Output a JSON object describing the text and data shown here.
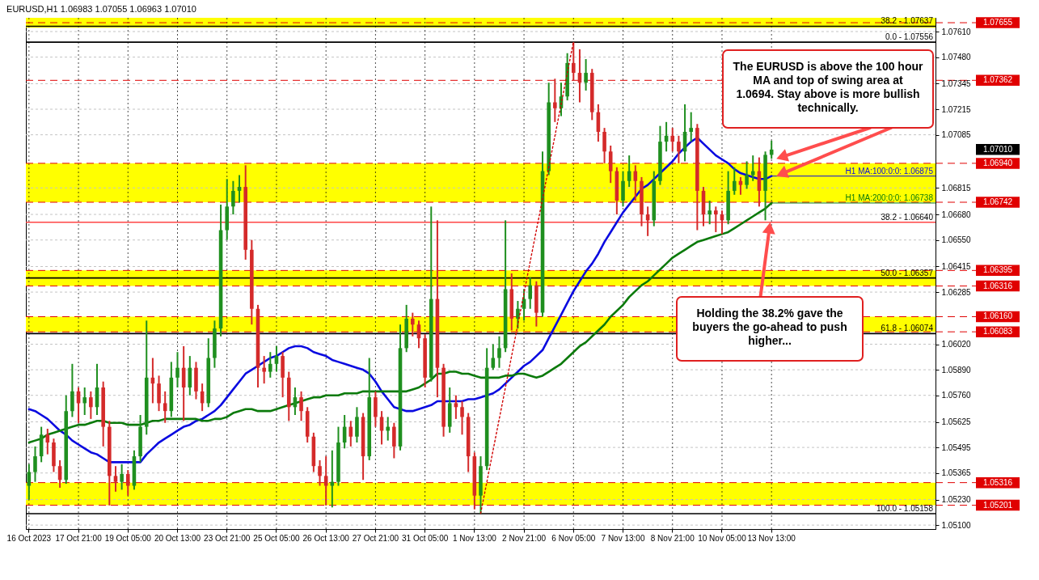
{
  "chart_data": {
    "type": "candlestick",
    "title": "EURUSD,H1  1.06983 1.07055 1.06963 1.07010",
    "categories": [
      "16 Oct 2023",
      null,
      null,
      null,
      null,
      null,
      null,
      null,
      "17 Oct 21:00",
      null,
      null,
      null,
      null,
      null,
      null,
      null,
      "19 Oct 05:00",
      null,
      null,
      null,
      null,
      null,
      null,
      null,
      "20 Oct 13:00",
      null,
      null,
      null,
      null,
      null,
      null,
      null,
      "23 Oct 21:00",
      null,
      null,
      null,
      null,
      null,
      null,
      null,
      "25 Oct 05:00",
      null,
      null,
      null,
      null,
      null,
      null,
      null,
      "26 Oct 13:00",
      null,
      null,
      null,
      null,
      null,
      null,
      null,
      "27 Oct 21:00",
      null,
      null,
      null,
      null,
      null,
      null,
      null,
      "31 Oct 05:00",
      null,
      null,
      null,
      null,
      null,
      null,
      null,
      "1 Nov 13:00",
      null,
      null,
      null,
      null,
      null,
      null,
      null,
      "2 Nov 21:00",
      null,
      null,
      null,
      null,
      null,
      null,
      null,
      "6 Nov 05:00",
      null,
      null,
      null,
      null,
      null,
      null,
      null,
      "7 Nov 13:00",
      null,
      null,
      null,
      null,
      null,
      null,
      null,
      "8 Nov 21:00",
      null,
      null,
      null,
      null,
      null,
      null,
      null,
      "10 Nov 05:00",
      null,
      null,
      null,
      null,
      null,
      null,
      null,
      "13 Nov 13:00"
    ],
    "ohlc": [
      [
        1.053,
        1.0541,
        1.0523,
        1.0537
      ],
      [
        1.0537,
        1.055,
        1.0532,
        1.0545
      ],
      [
        1.0545,
        1.056,
        1.0542,
        1.0556
      ],
      [
        1.0556,
        1.0559,
        1.0546,
        1.0552
      ],
      [
        1.0552,
        1.0554,
        1.0537,
        1.054
      ],
      [
        1.054,
        1.0543,
        1.0529,
        1.0533
      ],
      [
        1.0533,
        1.0576,
        1.0531,
        1.0568
      ],
      [
        1.0568,
        1.0592,
        1.0565,
        1.0578
      ],
      [
        1.0578,
        1.058,
        1.0562,
        1.0572
      ],
      [
        1.0572,
        1.058,
        1.0566,
        1.0575
      ],
      [
        1.0575,
        1.0578,
        1.0564,
        1.057
      ],
      [
        1.057,
        1.0592,
        1.0566,
        1.058
      ],
      [
        1.058,
        1.0583,
        1.055,
        1.056
      ],
      [
        1.056,
        1.0563,
        1.052,
        1.0535
      ],
      [
        1.0535,
        1.054,
        1.0527,
        1.0532
      ],
      [
        1.0532,
        1.0541,
        1.0528,
        1.0536
      ],
      [
        1.0536,
        1.0538,
        1.0525,
        1.053
      ],
      [
        1.053,
        1.0548,
        1.0528,
        1.0545
      ],
      [
        1.0545,
        1.0566,
        1.0542,
        1.056
      ],
      [
        1.056,
        1.0614,
        1.0556,
        1.0585
      ],
      [
        1.0585,
        1.0595,
        1.0572,
        1.0582
      ],
      [
        1.0582,
        1.0586,
        1.0568,
        1.0572
      ],
      [
        1.0572,
        1.0578,
        1.0562,
        1.0568
      ],
      [
        1.0568,
        1.0593,
        1.0565,
        1.0585
      ],
      [
        1.0585,
        1.0598,
        1.058,
        1.059
      ],
      [
        1.059,
        1.0601,
        1.0563,
        1.058
      ],
      [
        1.058,
        1.0596,
        1.0576,
        1.059
      ],
      [
        1.059,
        1.0593,
        1.0574,
        1.0578
      ],
      [
        1.0578,
        1.0582,
        1.0568,
        1.0572
      ],
      [
        1.0572,
        1.0605,
        1.057,
        1.0595
      ],
      [
        1.0595,
        1.0614,
        1.059,
        1.061
      ],
      [
        1.061,
        1.0673,
        1.0606,
        1.066
      ],
      [
        1.066,
        1.0686,
        1.0655,
        1.0672
      ],
      [
        1.0672,
        1.0685,
        1.0668,
        1.068
      ],
      [
        1.068,
        1.0688,
        1.0674,
        1.0682
      ],
      [
        1.0682,
        1.0693,
        1.0645,
        1.065
      ],
      [
        1.065,
        1.0655,
        1.0612,
        1.062
      ],
      [
        1.062,
        1.0622,
        1.058,
        1.059
      ],
      [
        1.059,
        1.0596,
        1.0582,
        1.0588
      ],
      [
        1.0588,
        1.0598,
        1.0585,
        1.0592
      ],
      [
        1.0592,
        1.0601,
        1.0588,
        1.0596
      ],
      [
        1.0596,
        1.0598,
        1.0575,
        1.0585
      ],
      [
        1.0585,
        1.0588,
        1.0563,
        1.057
      ],
      [
        1.057,
        1.058,
        1.0566,
        1.0575
      ],
      [
        1.0575,
        1.0578,
        1.0563,
        1.0568
      ],
      [
        1.0568,
        1.057,
        1.0552,
        1.0555
      ],
      [
        1.0555,
        1.0557,
        1.0537,
        1.054
      ],
      [
        1.054,
        1.0543,
        1.053,
        1.0535
      ],
      [
        1.0535,
        1.0545,
        1.052,
        1.053
      ],
      [
        1.053,
        1.0548,
        1.0519,
        1.0532
      ],
      [
        1.0532,
        1.056,
        1.053,
        1.0552
      ],
      [
        1.0552,
        1.0566,
        1.0549,
        1.056
      ],
      [
        1.056,
        1.0563,
        1.055,
        1.0555
      ],
      [
        1.0555,
        1.057,
        1.0552,
        1.0565
      ],
      [
        1.0565,
        1.0567,
        1.0533,
        1.0545
      ],
      [
        1.0545,
        1.0595,
        1.0543,
        1.0575
      ],
      [
        1.0575,
        1.0578,
        1.056,
        1.0565
      ],
      [
        1.0565,
        1.0568,
        1.0551,
        1.0558
      ],
      [
        1.0558,
        1.0565,
        1.0553,
        1.056
      ],
      [
        1.056,
        1.0562,
        1.0544,
        1.055
      ],
      [
        1.055,
        1.0612,
        1.0548,
        1.06
      ],
      [
        1.06,
        1.0622,
        1.0598,
        1.0615
      ],
      [
        1.0615,
        1.0618,
        1.0606,
        1.0612
      ],
      [
        1.0612,
        1.0614,
        1.06,
        1.0605
      ],
      [
        1.0605,
        1.0607,
        1.058,
        1.0585
      ],
      [
        1.0585,
        1.0672,
        1.0583,
        1.0625
      ],
      [
        1.0625,
        1.0665,
        1.0575,
        1.059
      ],
      [
        1.059,
        1.0592,
        1.0555,
        1.056
      ],
      [
        1.056,
        1.058,
        1.0557,
        1.0572
      ],
      [
        1.0572,
        1.0576,
        1.0564,
        1.057
      ],
      [
        1.057,
        1.0573,
        1.0556,
        1.0565
      ],
      [
        1.0565,
        1.0567,
        1.0537,
        1.0545
      ],
      [
        1.0545,
        1.0547,
        1.0518,
        1.0525
      ],
      [
        1.0525,
        1.0545,
        1.05158,
        1.054
      ],
      [
        1.054,
        1.06,
        1.0538,
        1.059
      ],
      [
        1.059,
        1.0602,
        1.0589,
        1.0595
      ],
      [
        1.0595,
        1.0606,
        1.059,
        1.06
      ],
      [
        1.06,
        1.0665,
        1.0598,
        1.063
      ],
      [
        1.063,
        1.0638,
        1.0609,
        1.0615
      ],
      [
        1.0615,
        1.0624,
        1.061,
        1.062
      ],
      [
        1.062,
        1.063,
        1.0614,
        1.0625
      ],
      [
        1.0625,
        1.0636,
        1.062,
        1.0632
      ],
      [
        1.0632,
        1.0634,
        1.0611,
        1.0618
      ],
      [
        1.0618,
        1.07,
        1.0616,
        1.069
      ],
      [
        1.069,
        1.0735,
        1.0688,
        1.0725
      ],
      [
        1.0725,
        1.0737,
        1.0715,
        1.0722
      ],
      [
        1.0722,
        1.0735,
        1.0718,
        1.0728
      ],
      [
        1.0728,
        1.075,
        1.0726,
        1.0745
      ],
      [
        1.0745,
        1.07556,
        1.0736,
        1.074
      ],
      [
        1.074,
        1.0752,
        1.0725,
        1.0735
      ],
      [
        1.0735,
        1.0747,
        1.0731,
        1.074
      ],
      [
        1.074,
        1.0742,
        1.0716,
        1.072
      ],
      [
        1.072,
        1.0724,
        1.0705,
        1.071
      ],
      [
        1.071,
        1.0712,
        1.0694,
        1.07
      ],
      [
        1.07,
        1.0703,
        1.0684,
        1.069
      ],
      [
        1.069,
        1.0692,
        1.0668,
        1.0675
      ],
      [
        1.0675,
        1.069,
        1.0672,
        1.0685
      ],
      [
        1.0685,
        1.0698,
        1.0682,
        1.069
      ],
      [
        1.069,
        1.0693,
        1.0675,
        1.0685
      ],
      [
        1.0685,
        1.0687,
        1.0662,
        1.0668
      ],
      [
        1.0668,
        1.0672,
        1.0657,
        1.0665
      ],
      [
        1.0665,
        1.069,
        1.0662,
        1.0685
      ],
      [
        1.0685,
        1.0713,
        1.0683,
        1.0705
      ],
      [
        1.0705,
        1.0715,
        1.07,
        1.0708
      ],
      [
        1.0708,
        1.0712,
        1.07,
        1.0705
      ],
      [
        1.0705,
        1.0708,
        1.0694,
        1.07
      ],
      [
        1.07,
        1.0724,
        1.0695,
        1.071
      ],
      [
        1.071,
        1.072,
        1.0705,
        1.0712
      ],
      [
        1.0712,
        1.0714,
        1.066,
        1.068
      ],
      [
        1.068,
        1.0682,
        1.0662,
        1.0668
      ],
      [
        1.0668,
        1.0675,
        1.0663,
        1.067
      ],
      [
        1.067,
        1.0672,
        1.0659,
        1.0668
      ],
      [
        1.0668,
        1.067,
        1.0658,
        1.0665
      ],
      [
        1.0665,
        1.069,
        1.0663,
        1.068
      ],
      [
        1.068,
        1.0692,
        1.0678,
        1.0685
      ],
      [
        1.0685,
        1.0687,
        1.0678,
        1.0683
      ],
      [
        1.0683,
        1.0695,
        1.0681,
        1.0688
      ],
      [
        1.0688,
        1.0698,
        1.0685,
        1.069
      ],
      [
        1.069,
        1.0697,
        1.0672,
        1.068
      ],
      [
        1.068,
        1.07,
        1.0665,
        1.06983
      ],
      [
        1.06983,
        1.07055,
        1.06963,
        1.0701
      ]
    ],
    "colors": [
      "#1f8f1f",
      "#1f8f1f",
      "#1f8f1f",
      "#d42a2a",
      "#d42a2a",
      "#d42a2a",
      "#1f8f1f",
      "#1f8f1f",
      "#d42a2a",
      "#1f8f1f",
      "#d42a2a",
      "#1f8f1f",
      "#d42a2a",
      "#d42a2a",
      "#d42a2a",
      "#1f8f1f",
      "#d42a2a",
      "#1f8f1f",
      "#1f8f1f",
      "#1f8f1f",
      "#d42a2a",
      "#d42a2a",
      "#d42a2a",
      "#1f8f1f",
      "#1f8f1f",
      "#d42a2a",
      "#1f8f1f",
      "#d42a2a",
      "#d42a2a",
      "#1f8f1f",
      "#1f8f1f",
      "#1f8f1f",
      "#1f8f1f",
      "#1f8f1f",
      "#1f8f1f",
      "#d42a2a",
      "#d42a2a",
      "#d42a2a",
      "#d42a2a",
      "#1f8f1f",
      "#1f8f1f",
      "#d42a2a",
      "#d42a2a",
      "#1f8f1f",
      "#d42a2a",
      "#d42a2a",
      "#d42a2a",
      "#d42a2a",
      "#d42a2a",
      "#1f8f1f",
      "#1f8f1f",
      "#1f8f1f",
      "#d42a2a",
      "#1f8f1f",
      "#d42a2a",
      "#1f8f1f",
      "#d42a2a",
      "#d42a2a",
      "#1f8f1f",
      "#d42a2a",
      "#1f8f1f",
      "#1f8f1f",
      "#d42a2a",
      "#d42a2a",
      "#d42a2a",
      "#1f8f1f",
      "#d42a2a",
      "#d42a2a",
      "#1f8f1f",
      "#d42a2a",
      "#d42a2a",
      "#d42a2a",
      "#d42a2a",
      "#1f8f1f",
      "#1f8f1f",
      "#1f8f1f",
      "#1f8f1f",
      "#1f8f1f",
      "#d42a2a",
      "#1f8f1f",
      "#1f8f1f",
      "#1f8f1f",
      "#d42a2a",
      "#1f8f1f",
      "#1f8f1f",
      "#d42a2a",
      "#1f8f1f",
      "#1f8f1f",
      "#d42a2a",
      "#d42a2a",
      "#1f8f1f",
      "#d42a2a",
      "#d42a2a",
      "#d42a2a",
      "#d42a2a",
      "#d42a2a",
      "#1f8f1f",
      "#1f8f1f",
      "#d42a2a",
      "#d42a2a",
      "#d42a2a",
      "#1f8f1f",
      "#1f8f1f",
      "#1f8f1f",
      "#d42a2a",
      "#d42a2a",
      "#1f8f1f",
      "#1f8f1f",
      "#d42a2a",
      "#d42a2a",
      "#1f8f1f",
      "#d42a2a",
      "#d42a2a",
      "#1f8f1f",
      "#1f8f1f",
      "#d42a2a",
      "#1f8f1f",
      "#1f8f1f",
      "#d42a2a",
      "#1f8f1f",
      "#1f8f1f"
    ],
    "series": [
      {
        "type": "line",
        "name": "H1 MA:100:0:0: 1.06875",
        "color": "#0a0ae0",
        "values": [
          1.0569,
          1.0568,
          1.0566,
          1.0564,
          1.0561,
          1.0558,
          1.0556,
          1.0553,
          1.0551,
          1.0549,
          1.0547,
          1.0546,
          1.0544,
          1.0542,
          1.0542,
          1.0542,
          1.0542,
          1.0542,
          1.0542,
          1.0546,
          1.0549,
          1.0552,
          1.0554,
          1.0556,
          1.0558,
          1.056,
          1.0561,
          1.0563,
          1.0564,
          1.0566,
          1.0568,
          1.0571,
          1.0575,
          1.0579,
          1.0583,
          1.0587,
          1.0589,
          1.0591,
          1.0593,
          1.0595,
          1.0596,
          1.0598,
          1.06,
          1.0601,
          1.0601,
          1.06,
          1.0598,
          1.0597,
          1.0596,
          1.0594,
          1.0593,
          1.0592,
          1.0591,
          1.059,
          1.0589,
          1.0587,
          1.0583,
          1.0578,
          1.0574,
          1.057,
          1.0569,
          1.0568,
          1.0568,
          1.0569,
          1.057,
          1.0571,
          1.0573,
          1.0573,
          1.0573,
          1.0573,
          1.0573,
          1.0574,
          1.0574,
          1.0575,
          1.0576,
          1.0577,
          1.0579,
          1.0582,
          1.0585,
          1.0588,
          1.0591,
          1.0593,
          1.0596,
          1.0599,
          1.0605,
          1.0611,
          1.0617,
          1.0623,
          1.0629,
          1.0634,
          1.0639,
          1.0643,
          1.0648,
          1.0654,
          1.0659,
          1.0664,
          1.0669,
          1.0673,
          1.0677,
          1.0681,
          1.0683,
          1.0686,
          1.0689,
          1.0692,
          1.0695,
          1.0699,
          1.0702,
          1.0705,
          1.0707,
          1.0704,
          1.0701,
          1.0698,
          1.0696,
          1.0694,
          1.0691,
          1.0689,
          1.0688,
          1.0687,
          1.0686,
          1.0686,
          1.06875
        ]
      },
      {
        "type": "line",
        "name": "H1 MA:200:0:0: 1.06738",
        "color": "#0b7a0b",
        "values": [
          1.0552,
          1.0553,
          1.0554,
          1.0556,
          1.0557,
          1.0558,
          1.0559,
          1.056,
          1.0561,
          1.0561,
          1.0562,
          1.0563,
          1.0563,
          1.0562,
          1.0562,
          1.0562,
          1.0561,
          1.0561,
          1.0561,
          1.0562,
          1.0563,
          1.0563,
          1.0564,
          1.0564,
          1.0564,
          1.0564,
          1.0564,
          1.0564,
          1.0563,
          1.0563,
          1.0564,
          1.0564,
          1.0565,
          1.0567,
          1.0568,
          1.0569,
          1.0569,
          1.0568,
          1.0568,
          1.0568,
          1.0569,
          1.057,
          1.0571,
          1.0572,
          1.0573,
          1.0574,
          1.0575,
          1.0575,
          1.0576,
          1.0576,
          1.0576,
          1.0577,
          1.0577,
          1.0577,
          1.0578,
          1.0578,
          1.0578,
          1.0578,
          1.0578,
          1.0578,
          1.0578,
          1.0578,
          1.0579,
          1.058,
          1.0582,
          1.0584,
          1.0587,
          1.0587,
          1.0588,
          1.0588,
          1.0587,
          1.0587,
          1.0586,
          1.0585,
          1.0585,
          1.0585,
          1.0585,
          1.0586,
          1.0586,
          1.0587,
          1.0587,
          1.0586,
          1.0585,
          1.0586,
          1.0588,
          1.059,
          1.0592,
          1.0595,
          1.0598,
          1.0601,
          1.0603,
          1.0606,
          1.0609,
          1.0612,
          1.0616,
          1.0619,
          1.0622,
          1.0626,
          1.0629,
          1.0632,
          1.0634,
          1.0637,
          1.064,
          1.0643,
          1.0646,
          1.0648,
          1.065,
          1.0652,
          1.0654,
          1.0655,
          1.0656,
          1.0657,
          1.0658,
          1.0659,
          1.0661,
          1.0663,
          1.0665,
          1.0667,
          1.0669,
          1.0671,
          1.06738
        ]
      },
      {
        "type": "line",
        "color": "#d00000",
        "line_style": "dotted",
        "values": [
          null,
          null,
          null,
          null,
          null,
          null,
          null,
          null,
          null,
          null,
          null,
          null,
          null,
          null,
          null,
          null,
          null,
          null,
          null,
          null,
          null,
          null,
          null,
          null,
          null,
          null,
          null,
          null,
          null,
          null,
          null,
          null,
          null,
          null,
          null,
          null,
          null,
          null,
          null,
          null,
          null,
          null,
          null,
          null,
          null,
          null,
          null,
          null,
          null,
          null,
          null,
          null,
          null,
          null,
          null,
          null,
          null,
          null,
          null,
          null,
          null,
          null,
          null,
          null,
          null,
          null,
          null,
          null,
          null,
          null,
          null,
          null,
          null,
          1.0516,
          1.0532,
          1.0548,
          1.0564,
          1.058,
          1.0596,
          1.0612,
          1.0628,
          1.0644,
          1.066,
          1.0676,
          1.0692,
          1.0708,
          1.0724,
          1.074,
          1.0756,
          null,
          null,
          null,
          null,
          null,
          null,
          null,
          null,
          null,
          null,
          null,
          null,
          null,
          null,
          null,
          null,
          null,
          null,
          null,
          null,
          null,
          null,
          null,
          null,
          null,
          null,
          null,
          null,
          null,
          null,
          null,
          null
        ]
      }
    ],
    "ylim": [
      1.0508,
      1.0768
    ],
    "yticks": [
      {
        "value": 1.0761,
        "label": "1.07610"
      },
      {
        "value": 1.0748,
        "label": "1.07480"
      },
      {
        "value": 1.07345,
        "label": "1.07345"
      },
      {
        "value": 1.07215,
        "label": "1.07215"
      },
      {
        "value": 1.07085,
        "label": "1.07085"
      },
      {
        "value": 1.06815,
        "label": "1.06815"
      },
      {
        "value": 1.0668,
        "label": "1.06680"
      },
      {
        "value": 1.0655,
        "label": "1.06550"
      },
      {
        "value": 1.06415,
        "label": "1.06415"
      },
      {
        "value": 1.06285,
        "label": "1.06285"
      },
      {
        "value": 1.0602,
        "label": "1.06020"
      },
      {
        "value": 1.0589,
        "label": "1.05890"
      },
      {
        "value": 1.0576,
        "label": "1.05760"
      },
      {
        "value": 1.05625,
        "label": "1.05625"
      },
      {
        "value": 1.05495,
        "label": "1.05495"
      },
      {
        "value": 1.05365,
        "label": "1.05365"
      },
      {
        "value": 1.0523,
        "label": "1.05230"
      },
      {
        "value": 1.051,
        "label": "1.05100"
      }
    ],
    "bands": [
      {
        "axis": "y",
        "from": 1.0763,
        "to": 1.0768,
        "color": "#ffff00"
      },
      {
        "axis": "y",
        "from": 1.06742,
        "to": 1.0694,
        "color": "#ffff00"
      },
      {
        "axis": "y",
        "from": 1.06316,
        "to": 1.06395,
        "color": "#ffff00"
      },
      {
        "axis": "y",
        "from": 1.06083,
        "to": 1.0616,
        "color": "#ffff00"
      },
      {
        "axis": "y",
        "from": 1.05201,
        "to": 1.05316,
        "color": "#ffff00"
      }
    ],
    "ref_lines": [
      {
        "axis": "y",
        "value": 1.07655,
        "label": "1.07655",
        "color": "#e00000",
        "line_style": "dashed"
      },
      {
        "axis": "y",
        "value": 1.07637,
        "color": "#000000",
        "line_style": "solid"
      },
      {
        "axis": "y",
        "value": 1.07556,
        "color": "#000000",
        "line_style": "solid"
      },
      {
        "axis": "y",
        "value": 1.07362,
        "label": "1.07362",
        "color": "#e00000",
        "line_style": "dashed"
      },
      {
        "axis": "y",
        "value": 1.0694,
        "label": "1.06940",
        "color": "#e00000",
        "line_style": "dashed"
      },
      {
        "axis": "y",
        "value": 1.06742,
        "label": "1.06742",
        "color": "#e00000",
        "line_style": "dashed"
      },
      {
        "axis": "y",
        "value": 1.0664,
        "color": "#ff4545",
        "line_style": "solid"
      },
      {
        "axis": "y",
        "value": 1.06395,
        "label": "1.06395",
        "color": "#e00000",
        "line_style": "dashed"
      },
      {
        "axis": "y",
        "value": 1.06357,
        "color": "#000000",
        "line_style": "solid"
      },
      {
        "axis": "y",
        "value": 1.06316,
        "label": "1.06316",
        "color": "#e00000",
        "line_style": "dashed"
      },
      {
        "axis": "y",
        "value": 1.0616,
        "label": "1.06160",
        "color": "#e00000",
        "line_style": "dashed"
      },
      {
        "axis": "y",
        "value": 1.06083,
        "label": "1.06083",
        "color": "#e00000",
        "line_style": "dashed"
      },
      {
        "axis": "y",
        "value": 1.06074,
        "color": "#000000",
        "line_style": "solid"
      },
      {
        "axis": "y",
        "value": 1.05316,
        "label": "1.05316",
        "color": "#e00000",
        "line_style": "dashed"
      },
      {
        "axis": "y",
        "value": 1.05201,
        "label": "1.05201",
        "color": "#e00000",
        "line_style": "dashed"
      },
      {
        "axis": "y",
        "value": 1.05158,
        "color": "#000000",
        "line_style": "solid"
      }
    ],
    "annotations": [
      "The EURUSD is above the 100 hour MA and top of swing area at 1.0694. Stay above is more bullish technically.",
      {
        "text": "Holding the 38.2% gave the buyers the go-ahead to push higher...",
        "y": 1.0664
      },
      "1.07010",
      {
        "text": "38.2 - 1.07637",
        "y": 1.07637
      },
      {
        "text": "0.0 - 1.07556",
        "y": 1.07556
      },
      {
        "text": "38.2 - 1.06640",
        "y": 1.0664
      },
      {
        "text": "50.0 - 1.06357",
        "y": 1.06357
      },
      {
        "text": "61.8 - 1.06074",
        "y": 1.06074
      },
      {
        "text": "100.0 - 1.05158",
        "y": 1.05158
      }
    ],
    "grid": true,
    "line_style": "solid"
  }
}
